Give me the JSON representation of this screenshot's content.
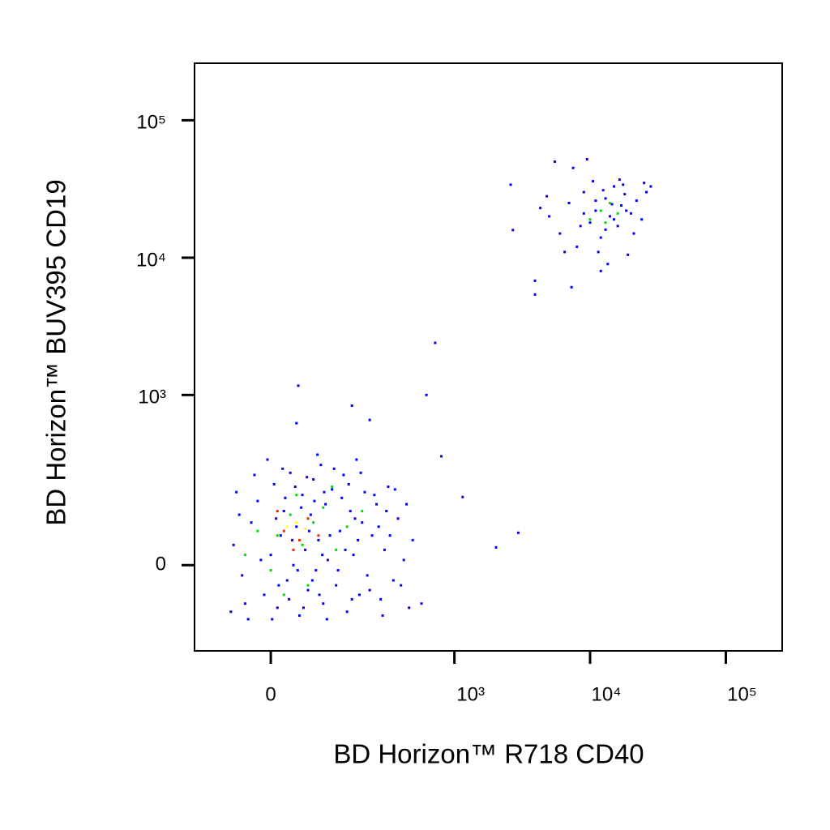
{
  "chart_data": {
    "type": "scatter",
    "xlabel": "BD Horizon™ R718 CD40",
    "ylabel": "BD Horizon™ BUV395 CD19",
    "xscale": "biexponential",
    "yscale": "biexponential",
    "xlim": [
      -150,
      260000
    ],
    "ylim": [
      -230,
      260000
    ],
    "xticks": [
      0,
      {
        "value": 1000,
        "label": "10³"
      },
      {
        "value": 10000,
        "label": "10⁴"
      },
      {
        "value": 100000,
        "label": "10⁵"
      }
    ],
    "yticks": [
      0,
      {
        "value": 1000,
        "label": "10³"
      },
      {
        "value": 10000,
        "label": "10⁴"
      },
      {
        "value": 100000,
        "label": "10⁵"
      }
    ],
    "series": [
      {
        "color": "#0000ff",
        "x": [
          -60,
          -45,
          -30,
          -20,
          -10,
          0,
          5,
          10,
          15,
          20,
          25,
          30,
          35,
          40,
          45,
          50,
          55,
          60,
          65,
          70,
          75,
          80,
          85,
          90,
          95,
          100,
          110,
          120,
          130,
          140,
          150,
          160,
          170,
          180,
          190,
          200,
          210,
          220,
          240,
          260,
          280,
          300,
          320,
          350,
          380,
          420,
          460,
          -55,
          -40,
          -25,
          -15,
          -5,
          2,
          8,
          12,
          18,
          22,
          28,
          33,
          38,
          42,
          48,
          52,
          58,
          62,
          68,
          72,
          78,
          82,
          88,
          92,
          98,
          105,
          115,
          125,
          135,
          145,
          155,
          165,
          175,
          185,
          195,
          230,
          250,
          270,
          290,
          310,
          330,
          360,
          400,
          440,
          -65,
          -50,
          -35,
          490,
          570,
          720,
          620,
          800,
          1150,
          2030,
          2960,
          43,
          165,
          230,
          40,
          2600,
          3930,
          3930,
          7300,
          2700,
          5000,
          6000,
          7000,
          8000,
          9000,
          10000,
          11000,
          12000,
          13000,
          14000,
          15000,
          16000,
          17000,
          18000,
          20000,
          22000,
          24000,
          26000,
          7500,
          9500,
          5500,
          11500,
          13500,
          19000,
          8500,
          10500,
          12500,
          14500,
          16500,
          4800,
          6500,
          9000,
          11000,
          13000,
          15000,
          17500,
          21000,
          25000,
          28000,
          4300,
          12000,
          18500
        ],
        "y": [
          40,
          -20,
          90,
          150,
          -60,
          20,
          210,
          -90,
          60,
          120,
          -30,
          260,
          0,
          80,
          -110,
          170,
          30,
          -50,
          110,
          230,
          -10,
          50,
          300,
          -80,
          140,
          10,
          190,
          -40,
          70,
          250,
          -100,
          120,
          20,
          330,
          -60,
          90,
          180,
          -20,
          60,
          140,
          -70,
          30,
          200,
          -30,
          100,
          10,
          -90,
          180,
          -80,
          250,
          10,
          330,
          -120,
          100,
          -40,
          280,
          160,
          -70,
          50,
          200,
          -10,
          130,
          -90,
          240,
          70,
          -30,
          150,
          360,
          -60,
          20,
          180,
          -120,
          60,
          280,
          -10,
          160,
          30,
          210,
          -70,
          100,
          50,
          260,
          -50,
          170,
          80,
          -110,
          120,
          60,
          190,
          -40,
          140,
          -100,
          110,
          -120,
          50,
          -80,
          2400,
          1000,
          350,
          163,
          35,
          66,
          1170,
          835,
          655,
          620,
          34000,
          6800,
          5400,
          6100,
          15900,
          20000,
          15000,
          25000,
          12000,
          30000,
          18000,
          22000,
          14000,
          27000,
          20000,
          33000,
          17000,
          24000,
          29000,
          21000,
          26000,
          19000,
          30000,
          45000,
          52000,
          50000,
          11000,
          9000,
          10500,
          17000,
          36000,
          31000,
          24500,
          37000,
          28000,
          11000,
          21000,
          26000,
          16000,
          19000,
          34000,
          15000,
          35000,
          33000,
          23000,
          8000,
          22000
        ]
      },
      {
        "color": "#00dd00",
        "x": [
          10,
          30,
          50,
          70,
          -20,
          90,
          120,
          0,
          40,
          150,
          -40,
          60,
          200,
          20,
          110,
          12000,
          14000,
          10000,
          16000,
          13000
        ],
        "y": [
          60,
          110,
          40,
          90,
          70,
          130,
          30,
          -10,
          170,
          80,
          20,
          -40,
          120,
          -60,
          200,
          22000,
          25000,
          19000,
          21000,
          18000
        ]
      },
      {
        "color": "#ffff00",
        "x": [
          25,
          55,
          40
        ],
        "y": [
          80,
          75,
          90
        ]
      },
      {
        "color": "#ff2000",
        "x": [
          20,
          45,
          60,
          35,
          80,
          10
        ],
        "y": [
          70,
          50,
          100,
          30,
          60,
          120
        ]
      }
    ]
  }
}
